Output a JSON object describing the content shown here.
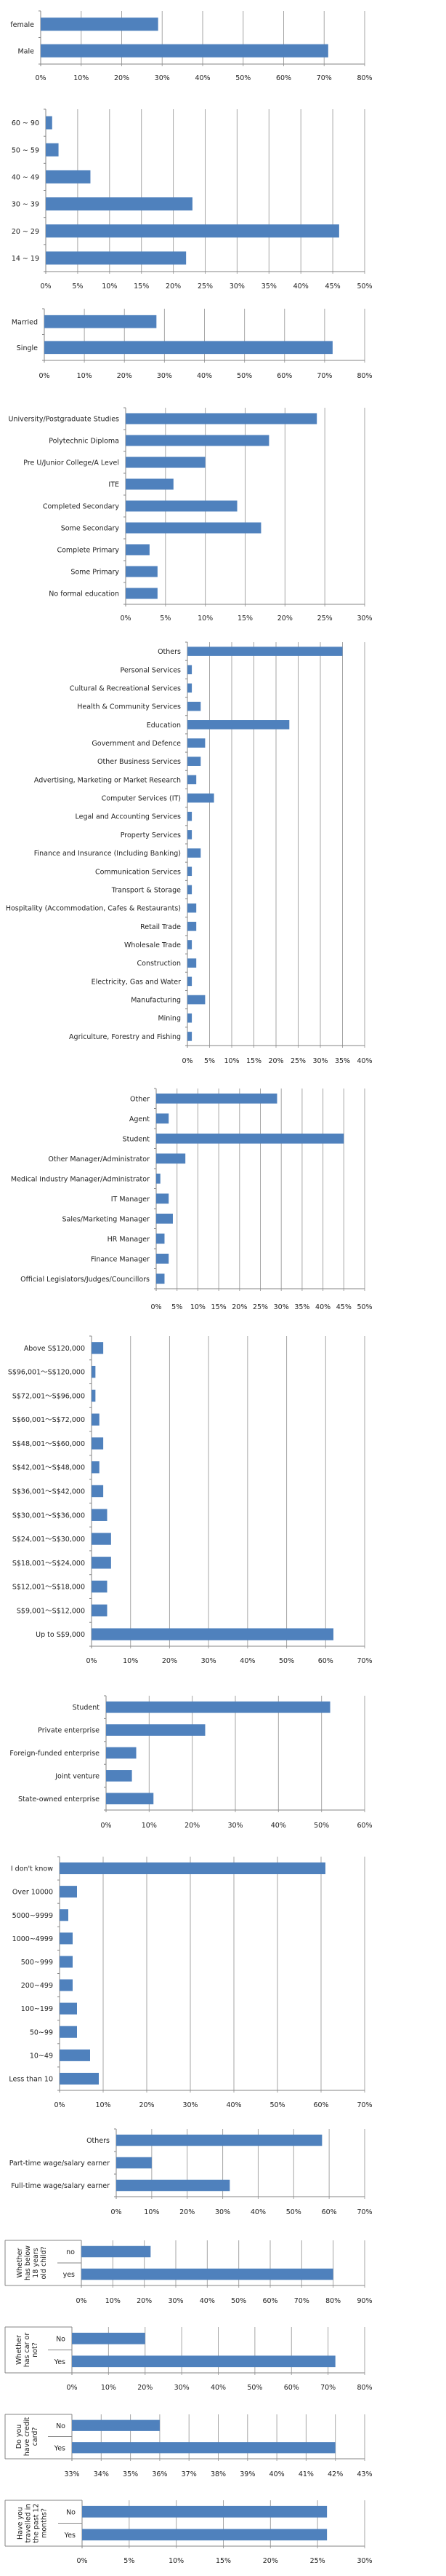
{
  "colors": {
    "bar": "#4f81bd",
    "grid": "#a6a6a6",
    "axis": "#868686"
  },
  "chart_data": [
    {
      "type": "bar",
      "title": "",
      "categories": [
        "female",
        "Male"
      ],
      "values": [
        29,
        71
      ],
      "xlim": [
        0,
        80
      ],
      "step": 10,
      "unit": "%"
    },
    {
      "type": "bar",
      "title": "",
      "categories": [
        "60 ~ 90",
        "50 ~ 59",
        "40 ~ 49",
        "30 ~ 39",
        "20 ~ 29",
        "14 ~ 19"
      ],
      "values": [
        1,
        2,
        7,
        23,
        46,
        22
      ],
      "xlim": [
        0,
        50
      ],
      "step": 5,
      "unit": "%"
    },
    {
      "type": "bar",
      "title": "",
      "categories": [
        "Married",
        "Single"
      ],
      "values": [
        28,
        72
      ],
      "xlim": [
        0,
        80
      ],
      "step": 10,
      "unit": "%"
    },
    {
      "type": "bar",
      "title": "",
      "categories": [
        "University/Postgraduate Studies",
        "Polytechnic Diploma",
        "Pre U/Junior College/A Level",
        "ITE",
        "Completed Secondary",
        "Some Secondary",
        "Complete Primary",
        "Some Primary",
        "No formal education"
      ],
      "values": [
        24,
        18,
        10,
        6,
        14,
        17,
        3,
        4,
        4
      ],
      "xlim": [
        0,
        30
      ],
      "step": 5,
      "unit": "%"
    },
    {
      "type": "bar",
      "title": "",
      "categories": [
        "Others",
        "Personal Services",
        "Cultural & Recreational Services",
        "Health & Community Services",
        "Education",
        "Government and Defence",
        "Other Business Services",
        "Advertising, Marketing or Market Research",
        "Computer Services (IT)",
        "Legal and Accounting Services",
        "Property Services",
        "Finance and Insurance (Including Banking)",
        "Communication Services",
        "Transport & Storage",
        "Hospitality (Accommodation, Cafes & Restaurants)",
        "Retail Trade",
        "Wholesale Trade",
        "Construction",
        "Electricity, Gas and Water",
        "Manufacturing",
        "Mining",
        "Agriculture, Forestry and Fishing"
      ],
      "values": [
        35,
        1,
        1,
        3,
        23,
        4,
        3,
        2,
        6,
        1,
        1,
        3,
        1,
        1,
        2,
        2,
        1,
        2,
        1,
        4,
        1,
        1
      ],
      "xlim": [
        0,
        40
      ],
      "step": 5,
      "unit": "%"
    },
    {
      "type": "bar",
      "title": "",
      "categories": [
        "Other",
        "Agent",
        "Student",
        "Other Manager/Administrator",
        "Medical Industry Manager/Administrator",
        "IT Manager",
        "Sales/Marketing Manager",
        "HR Manager",
        "Finance Manager",
        "Official Legislators/Judges/Councillors"
      ],
      "values": [
        29,
        3,
        45,
        7,
        1,
        3,
        4,
        2,
        3,
        2
      ],
      "xlim": [
        0,
        50
      ],
      "step": 5,
      "unit": "%"
    },
    {
      "type": "bar",
      "title": "",
      "categories": [
        "Above S$120,000",
        "S$96,001～S$120,000",
        "S$72,001～S$96,000",
        "S$60,001～S$72,000",
        "S$48,001～S$60,000",
        "S$42,001～S$48,000",
        "S$36,001～S$42,000",
        "S$30,001～S$36,000",
        "S$24,001～S$30,000",
        "S$18,001～S$24,000",
        "S$12,001～S$18,000",
        "S$9,001～S$12,000",
        "Up to S$9,000"
      ],
      "values": [
        3,
        1,
        1,
        2,
        3,
        2,
        3,
        4,
        5,
        5,
        4,
        4,
        62
      ],
      "xlim": [
        0,
        70
      ],
      "step": 10,
      "unit": "%"
    },
    {
      "type": "bar",
      "title": "",
      "categories": [
        "Student",
        "Private enterprise",
        "Foreign-funded enterprise",
        "Joint venture",
        "State-owned enterprise"
      ],
      "values": [
        52,
        23,
        7,
        6,
        11
      ],
      "xlim": [
        0,
        60
      ],
      "step": 10,
      "unit": "%"
    },
    {
      "type": "bar",
      "title": "",
      "categories": [
        "I don't know",
        "Over 10000",
        "5000~9999",
        "1000~4999",
        "500~999",
        "200~499",
        "100~199",
        "50~99",
        "10~49",
        "Less than 10"
      ],
      "values": [
        61,
        4,
        2,
        3,
        3,
        3,
        4,
        4,
        7,
        9
      ],
      "xlim": [
        0,
        70
      ],
      "step": 10,
      "unit": "%"
    },
    {
      "type": "bar",
      "title": "",
      "categories": [
        "Others",
        "Part-time wage/salary  earner",
        "Full-time wage/salary  earner"
      ],
      "values": [
        58,
        10,
        32
      ],
      "xlim": [
        0,
        70
      ],
      "step": 10,
      "unit": "%"
    },
    {
      "type": "bar",
      "title": "",
      "group": "Whether has below 18 years old child?",
      "group_lines": [
        "Whether",
        "has below",
        "18 years",
        "old child?"
      ],
      "categories": [
        "no",
        "yes"
      ],
      "values": [
        22,
        80
      ],
      "xlim": [
        0,
        90
      ],
      "step": 10,
      "unit": "%"
    },
    {
      "type": "bar",
      "title": "",
      "group": "Whether has car or not?",
      "group_lines": [
        "Whether",
        "has car or",
        "not?"
      ],
      "categories": [
        "No",
        "Yes"
      ],
      "values": [
        20,
        72
      ],
      "xlim": [
        0,
        80
      ],
      "step": 10,
      "unit": "%"
    },
    {
      "type": "bar",
      "title": "",
      "group": "Do you have credit card?",
      "group_lines": [
        "Do you",
        "have credit",
        "card?"
      ],
      "categories": [
        "No",
        "Yes"
      ],
      "values": [
        36,
        42
      ],
      "xlim": [
        33,
        43
      ],
      "step": 1,
      "unit": "%"
    },
    {
      "type": "bar",
      "title": "",
      "group": "Have you travelled in the past 12 months?",
      "group_lines": [
        "Have you",
        "travelled in",
        "the past 12",
        "months?"
      ],
      "categories": [
        "No",
        "Yes"
      ],
      "values": [
        26,
        26
      ],
      "xlim": [
        0,
        30
      ],
      "step": 5,
      "unit": "%"
    }
  ]
}
